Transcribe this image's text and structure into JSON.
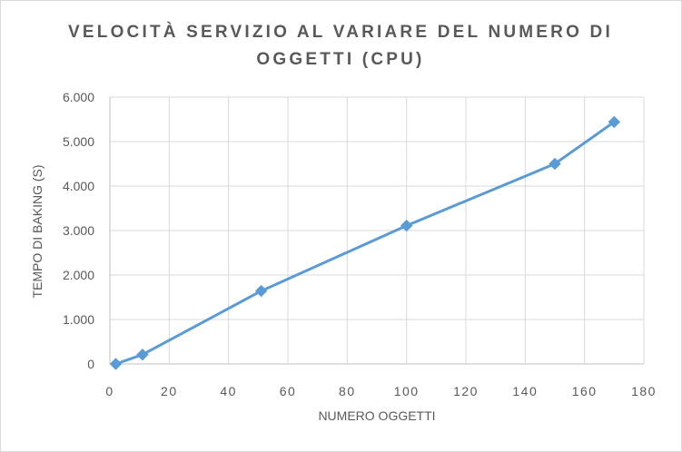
{
  "chart_data": {
    "type": "scatter",
    "title_lines": [
      "VELOCITÀ SERVIZIO AL VARIARE DEL NUMERO DI",
      "OGGETTI (CPU)"
    ],
    "xlabel": "NUMERO OGGETTI",
    "ylabel": "TEMPO DI BAKING (S)",
    "xlim": [
      0,
      180
    ],
    "ylim": [
      0,
      6000
    ],
    "x_ticks": [
      "0",
      "20",
      "40",
      "60",
      "80",
      "100",
      "120",
      "140",
      "160",
      "180"
    ],
    "y_ticks": [
      "0",
      "1.000",
      "2.000",
      "3.000",
      "4.000",
      "5.000",
      "6.000"
    ],
    "grid": true,
    "series": [
      {
        "x": [
          2,
          11,
          51,
          100,
          150,
          170
        ],
        "y": [
          0,
          210,
          1640,
          3110,
          4500,
          5440
        ],
        "color": "#5b9bd5",
        "marker": "diamond",
        "lines": true
      }
    ]
  }
}
